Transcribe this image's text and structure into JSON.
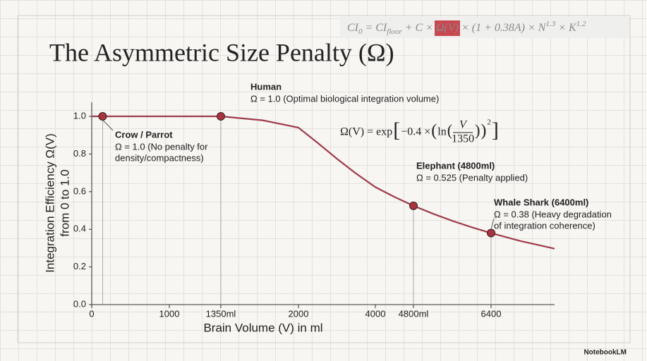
{
  "chart_data": {
    "type": "line",
    "title": "The Asymmetric Size Penalty (Ω)",
    "formula_top": [
      "CI",
      "0",
      " = CI",
      "floor",
      " + C × ",
      "Ω(V)",
      " × (1 + 0.38A) × N",
      "1.3",
      " × K",
      "1.2"
    ],
    "formula": [
      "Ω(V) = exp",
      "[",
      "−0.4 × ",
      "(",
      "ln",
      "(",
      "V",
      "1350",
      ")",
      ")",
      "2",
      "]"
    ],
    "x_label": "Brain Volume (V) in ml",
    "y_label": [
      "Integration Efficiency Ω(V)",
      "from 0 to 1.0"
    ],
    "xlim": [
      0,
      7700
    ],
    "ylim": [
      0,
      1.075
    ],
    "xticks": [
      0,
      1000,
      {
        "value": 1350,
        "label": "1350ml"
      },
      2000,
      4000,
      {
        "value": 4800,
        "label": "4800ml"
      },
      6400
    ],
    "yticks": [
      {
        "value": 0,
        "label": "0.0"
      },
      0.2,
      0.4,
      0.6,
      0.8,
      {
        "value": 1,
        "label": "1.0"
      }
    ],
    "grid": false,
    "series": [
      {
        "color": "#9e3b4b",
        "x": [
          0,
          140,
          500,
          1000,
          1350,
          1700,
          2000,
          2500,
          3000,
          3500,
          4000,
          4400,
          4800,
          5200,
          5600,
          6000,
          6400,
          7000,
          7700
        ],
        "values": [
          1.0,
          1.0,
          1.0,
          1.0,
          1.0,
          0.979,
          0.94,
          0.859,
          0.775,
          0.696,
          0.624,
          0.572,
          0.525,
          0.483,
          0.445,
          0.411,
          0.38,
          0.338,
          0.297
        ]
      }
    ],
    "points": {
      "color": "#a8343f",
      "x": [
        140,
        1350,
        4800,
        6400
      ],
      "values": [
        1.0,
        1.0,
        0.525,
        0.38
      ]
    },
    "annotations": [
      {
        "title": "Crow / Parrot",
        "lines": [
          "Ω = 1.0 (No penalty for",
          "density/compactness)"
        ]
      },
      {
        "title": "Human",
        "lines": [
          "Ω = 1.0 (Optimal biological integration volume)"
        ]
      },
      {
        "title": "Elephant (4800ml)",
        "lines": [
          "Ω = 0.525 (Penalty applied)"
        ]
      },
      {
        "title": "Whale Shark (6400ml)",
        "lines": [
          "Ω = 0.38 (Heavy degradation",
          "of integration coherence)"
        ]
      }
    ]
  },
  "footer": {
    "brand": "NotebookLM"
  }
}
